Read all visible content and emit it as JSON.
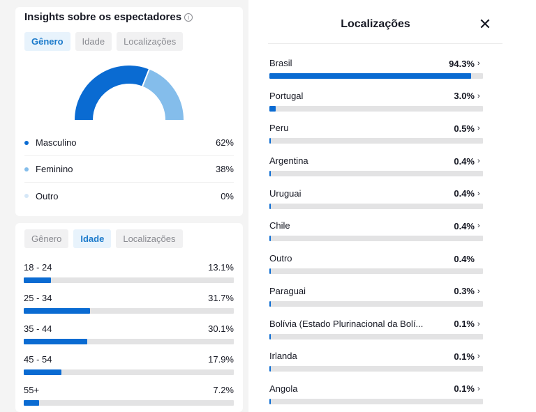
{
  "gender_card": {
    "title": "Insights sobre os espectadores",
    "info_glyph": "i",
    "tabs": [
      {
        "label": "Gênero",
        "active": true
      },
      {
        "label": "Idade",
        "active": false
      },
      {
        "label": "Localizações",
        "active": false
      }
    ],
    "legend": [
      {
        "label": "Masculino",
        "value": "62%",
        "color": "#0a6bd2"
      },
      {
        "label": "Feminino",
        "value": "38%",
        "color": "#84bdeb"
      },
      {
        "label": "Outro",
        "value": "0%",
        "color": "#d5e7f7"
      }
    ],
    "donut_shares": [
      0.62,
      0.38,
      0.0
    ]
  },
  "age_card": {
    "tabs": [
      {
        "label": "Gênero",
        "active": false
      },
      {
        "label": "Idade",
        "active": true
      },
      {
        "label": "Localizações",
        "active": false
      }
    ],
    "rows": [
      {
        "label": "18 - 24",
        "value": "13.1%",
        "fraction": 0.131
      },
      {
        "label": "25 - 34",
        "value": "31.7%",
        "fraction": 0.317
      },
      {
        "label": "35 - 44",
        "value": "30.1%",
        "fraction": 0.301
      },
      {
        "label": "45 - 54",
        "value": "17.9%",
        "fraction": 0.179
      },
      {
        "label": "55+",
        "value": "7.2%",
        "fraction": 0.072
      }
    ]
  },
  "locations": {
    "title": "Localizações",
    "close_glyph": "✕",
    "chevron_glyph": "›",
    "rows": [
      {
        "label": "Brasil",
        "value": "94.3%",
        "fraction": 0.943,
        "chevron": true
      },
      {
        "label": "Portugal",
        "value": "3.0%",
        "fraction": 0.03,
        "chevron": true
      },
      {
        "label": "Peru",
        "value": "0.5%",
        "fraction": 0.005,
        "chevron": true
      },
      {
        "label": "Argentina",
        "value": "0.4%",
        "fraction": 0.004,
        "chevron": true
      },
      {
        "label": "Uruguai",
        "value": "0.4%",
        "fraction": 0.004,
        "chevron": true
      },
      {
        "label": "Chile",
        "value": "0.4%",
        "fraction": 0.004,
        "chevron": true
      },
      {
        "label": "Outro",
        "value": "0.4%",
        "fraction": 0.004,
        "chevron": false
      },
      {
        "label": "Paraguai",
        "value": "0.3%",
        "fraction": 0.003,
        "chevron": true
      },
      {
        "label": "Bolívia (Estado Plurinacional da Bolí...",
        "value": "0.1%",
        "fraction": 0.001,
        "chevron": true
      },
      {
        "label": "Irlanda",
        "value": "0.1%",
        "fraction": 0.001,
        "chevron": true
      },
      {
        "label": "Angola",
        "value": "0.1%",
        "fraction": 0.001,
        "chevron": true
      }
    ]
  },
  "colors": {
    "bar_fill": "#0a6bd2",
    "bar_track": "#e3e3e4",
    "donut_male": "#0a6bd2",
    "donut_female": "#84bdeb"
  }
}
